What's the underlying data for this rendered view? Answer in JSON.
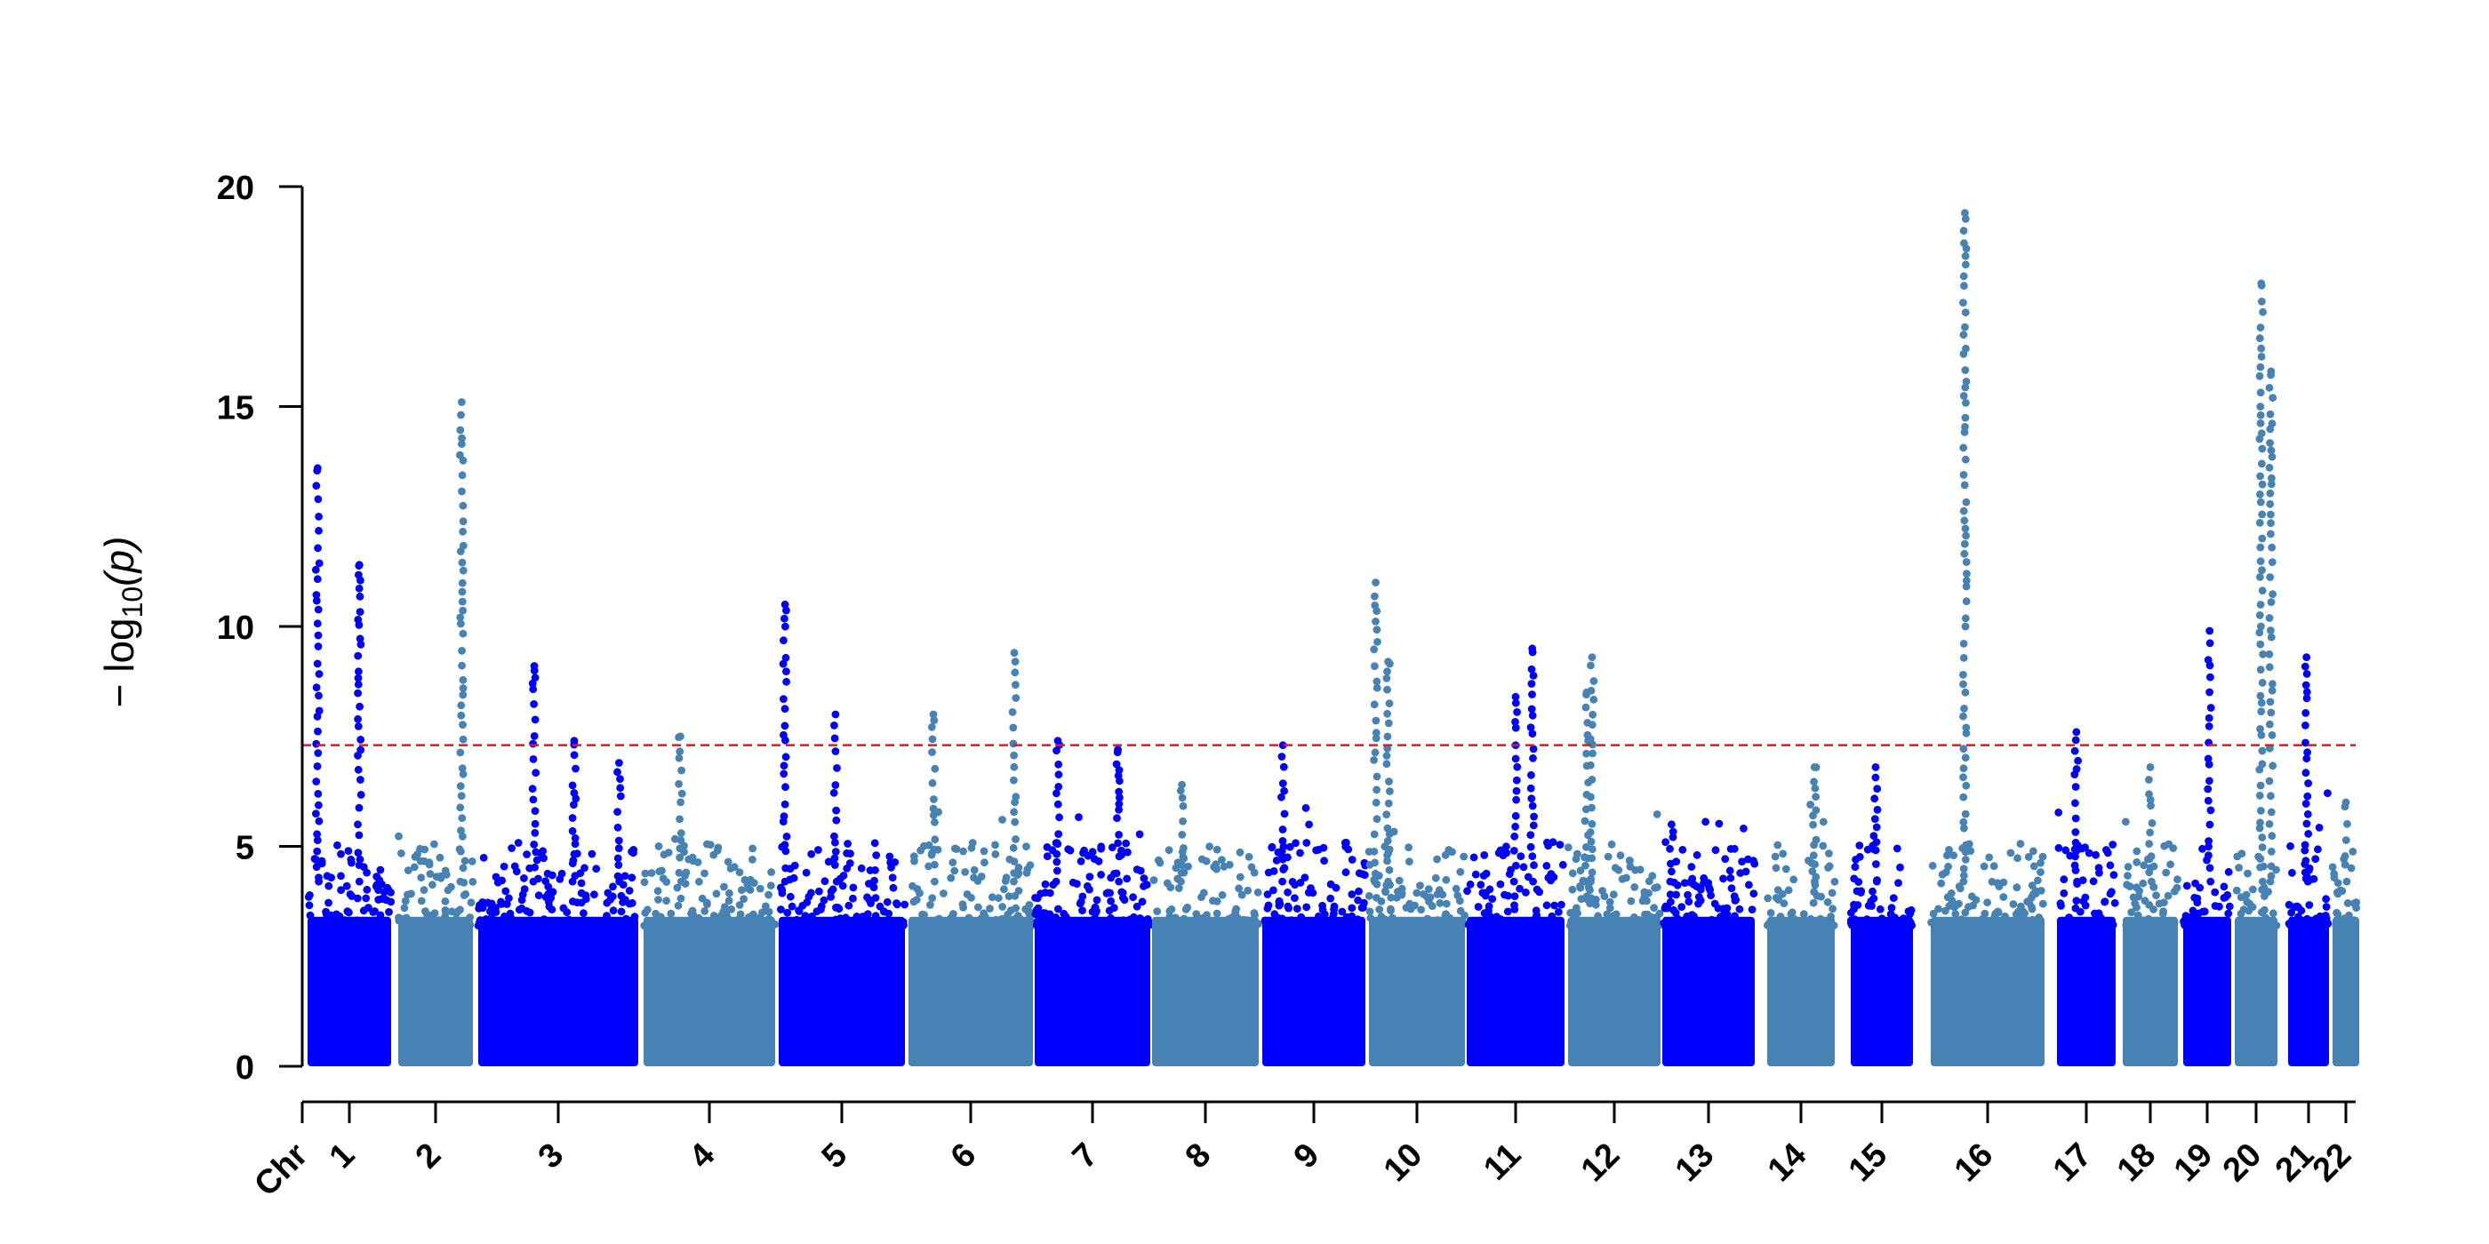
{
  "chart_data": {
    "type": "scatter",
    "subtype": "manhattan",
    "title": "",
    "xlabel": "",
    "ylabel": {
      "prefix": "− log",
      "subscript": "10",
      "suffix": "(p)"
    },
    "ylim": [
      0,
      20
    ],
    "y_ticks": [
      0,
      5,
      10,
      15,
      20
    ],
    "x_first_label": "Chr",
    "significance_threshold": 7.3,
    "threshold_color": "#e31a1c",
    "threshold_style": "dashed",
    "colors": {
      "odd": "#0000ff",
      "even": "#4682b4",
      "axis": "#000000"
    },
    "chromosomes": [
      {
        "label": "1",
        "max": 13.6,
        "peaks": [
          13.6,
          11.4
        ]
      },
      {
        "label": "2",
        "max": 15.1,
        "peaks": [
          15.1
        ]
      },
      {
        "label": "3",
        "max": 9.1,
        "peaks": [
          9.1,
          7.4,
          6.9
        ]
      },
      {
        "label": "4",
        "max": 7.5,
        "peaks": [
          7.5
        ]
      },
      {
        "label": "5",
        "max": 10.5,
        "peaks": [
          10.5,
          8.0
        ]
      },
      {
        "label": "6",
        "max": 9.4,
        "peaks": [
          8.0,
          9.4
        ]
      },
      {
        "label": "7",
        "max": 7.4,
        "peaks": [
          7.4,
          7.2
        ]
      },
      {
        "label": "8",
        "max": 6.4,
        "peaks": [
          6.4
        ]
      },
      {
        "label": "9",
        "max": 7.3,
        "peaks": [
          7.3
        ]
      },
      {
        "label": "10",
        "max": 11.0,
        "peaks": [
          11.0,
          9.2
        ]
      },
      {
        "label": "11",
        "max": 9.5,
        "peaks": [
          9.5,
          8.4
        ]
      },
      {
        "label": "12",
        "max": 9.3,
        "peaks": [
          9.3,
          8.5
        ]
      },
      {
        "label": "13",
        "max": 5.5,
        "peaks": [
          5.5
        ]
      },
      {
        "label": "14",
        "max": 6.8,
        "peaks": [
          6.8
        ]
      },
      {
        "label": "15",
        "max": 6.8,
        "peaks": [
          6.8
        ]
      },
      {
        "label": "16",
        "max": 19.4,
        "peaks": [
          19.4
        ]
      },
      {
        "label": "17",
        "max": 7.6,
        "peaks": [
          7.6
        ]
      },
      {
        "label": "18",
        "max": 6.8,
        "peaks": [
          6.8
        ]
      },
      {
        "label": "19",
        "max": 9.9,
        "peaks": [
          9.9
        ]
      },
      {
        "label": "20",
        "max": 17.8,
        "peaks": [
          17.8,
          15.8
        ]
      },
      {
        "label": "21",
        "max": 9.3,
        "peaks": [
          9.3
        ]
      },
      {
        "label": "22",
        "max": 6.0,
        "peaks": [
          6.0
        ]
      }
    ]
  }
}
